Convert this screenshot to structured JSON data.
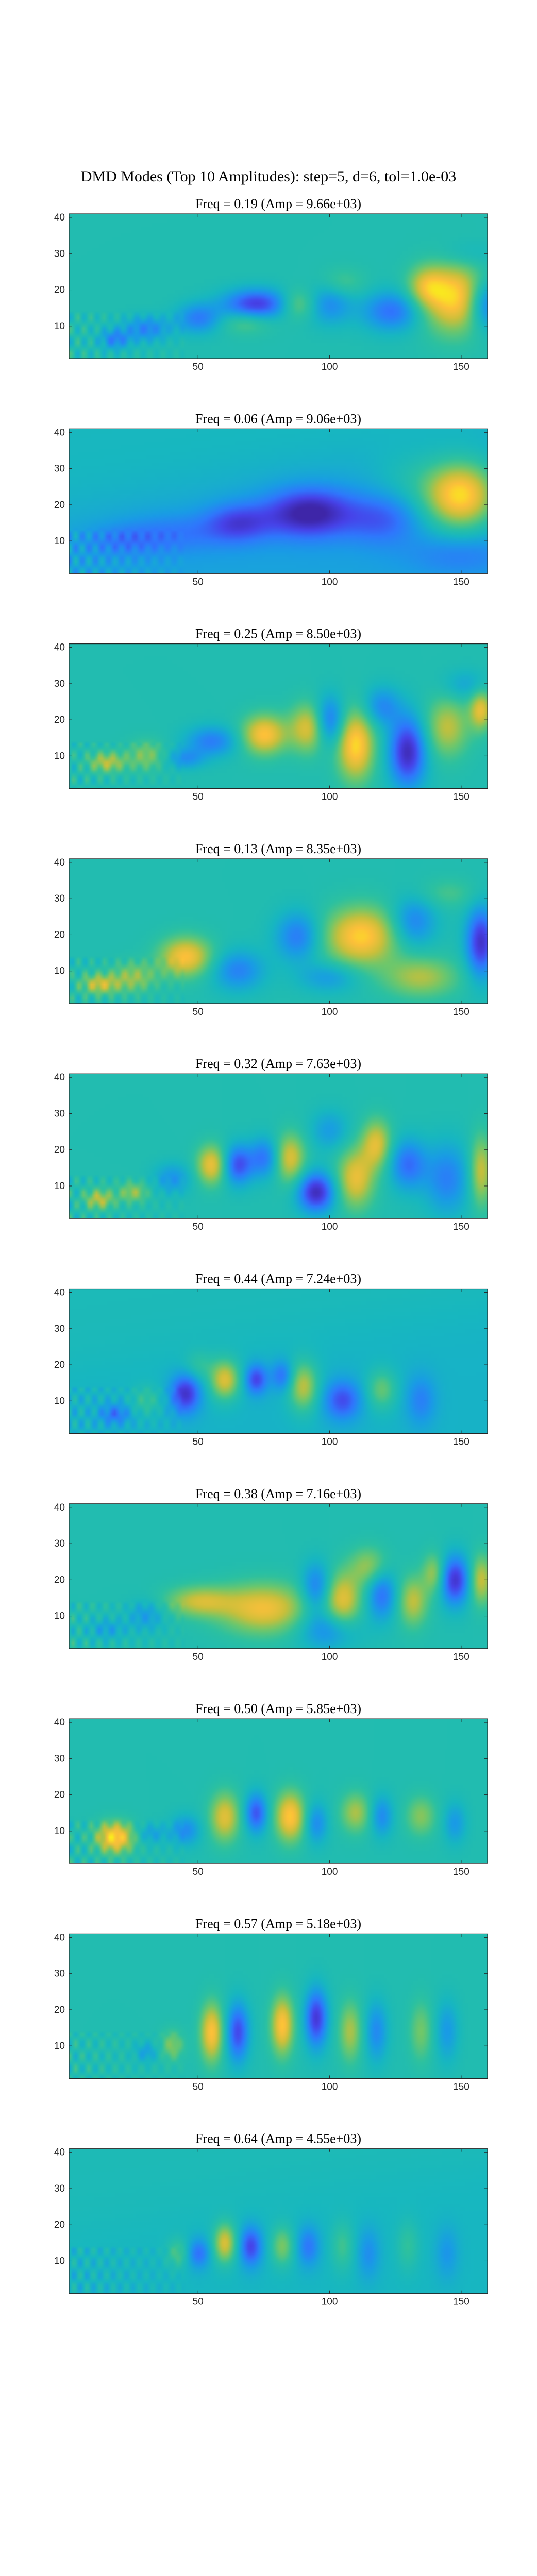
{
  "figure": {
    "suptitle": "DMD Modes (Top 10 Amplitudes): step=5, d=6, tol=1.0e-03"
  },
  "colormap": [
    "#3e26a8",
    "#4742e9",
    "#2f77fd",
    "#199ce5",
    "#17b7c0",
    "#2cc1a0",
    "#6ec76b",
    "#c9bf3a",
    "#fdbf3a",
    "#f8f815"
  ],
  "chart_data": [
    {
      "type": "heatmap",
      "title": "Freq = 0.19 (Amp = 9.66e+03)",
      "freq": 0.19,
      "amp": 9660,
      "xlim": [
        1,
        160
      ],
      "ylim": [
        1,
        41
      ],
      "xticks": [
        50,
        100,
        150
      ],
      "yticks": [
        10,
        20,
        30,
        40
      ],
      "grid": false,
      "blobs": [
        [
          148,
          18,
          9,
          7,
          0.9
        ],
        [
          137,
          21,
          5,
          4,
          0.5
        ],
        [
          72,
          16,
          9,
          3,
          -0.9
        ],
        [
          50,
          12,
          6,
          3,
          -0.55
        ],
        [
          100,
          16,
          6,
          4,
          -0.45
        ],
        [
          124,
          14,
          8,
          4,
          -0.6
        ],
        [
          160,
          16,
          5,
          5,
          -0.7
        ],
        [
          88,
          16,
          5,
          3,
          0.45
        ],
        [
          68,
          11,
          7,
          2.5,
          0.3
        ],
        [
          30,
          9,
          6,
          2.5,
          -0.5
        ],
        [
          18,
          6,
          4,
          2,
          -0.5
        ],
        [
          105,
          22,
          6,
          3,
          0.25
        ],
        [
          152,
          30,
          8,
          3,
          -0.2
        ]
      ]
    },
    {
      "type": "heatmap",
      "title": "Freq = 0.06 (Amp = 9.06e+03)",
      "freq": 0.06,
      "amp": 9060,
      "xlim": [
        1,
        160
      ],
      "ylim": [
        1,
        41
      ],
      "xticks": [
        50,
        100,
        150
      ],
      "yticks": [
        10,
        20,
        30,
        40
      ],
      "grid": false,
      "base": -0.28,
      "blobs": [
        [
          150,
          23,
          10,
          7,
          1.2
        ],
        [
          92,
          18,
          12,
          5,
          -0.85
        ],
        [
          65,
          15,
          9,
          4,
          -0.55
        ],
        [
          120,
          16,
          10,
          5,
          -0.4
        ],
        [
          40,
          12,
          14,
          4,
          -0.3
        ],
        [
          20,
          10,
          10,
          3,
          -0.25
        ],
        [
          130,
          28,
          10,
          6,
          0.2
        ],
        [
          150,
          6,
          14,
          4,
          -0.25
        ]
      ]
    },
    {
      "type": "heatmap",
      "title": "Freq = 0.25 (Amp = 8.50e+03)",
      "freq": 0.25,
      "amp": 8500,
      "xlim": [
        1,
        160
      ],
      "ylim": [
        1,
        41
      ],
      "xticks": [
        50,
        100,
        150
      ],
      "yticks": [
        10,
        20,
        30,
        40
      ],
      "grid": false,
      "blobs": [
        [
          110,
          13,
          5,
          7,
          0.9
        ],
        [
          130,
          11,
          5,
          7,
          -0.95
        ],
        [
          75,
          16,
          6,
          4,
          0.85
        ],
        [
          92,
          18,
          5,
          5,
          0.7
        ],
        [
          100,
          20,
          4,
          5,
          -0.7
        ],
        [
          145,
          18,
          6,
          6,
          0.55
        ],
        [
          158,
          23,
          3,
          4,
          0.7
        ],
        [
          120,
          24,
          5,
          4,
          -0.5
        ],
        [
          55,
          14,
          7,
          3,
          -0.55
        ],
        [
          30,
          10,
          5,
          3,
          0.4
        ],
        [
          15,
          8,
          5,
          2,
          0.55
        ],
        [
          45,
          9,
          5,
          2,
          -0.4
        ],
        [
          152,
          30,
          6,
          3,
          -0.3
        ]
      ]
    },
    {
      "type": "heatmap",
      "title": "Freq = 0.13 (Amp = 8.35e+03)",
      "freq": 0.13,
      "amp": 8350,
      "xlim": [
        1,
        160
      ],
      "ylim": [
        1,
        41
      ],
      "xticks": [
        50,
        100,
        150
      ],
      "yticks": [
        10,
        20,
        30,
        40
      ],
      "grid": false,
      "blobs": [
        [
          112,
          20,
          10,
          6,
          0.9
        ],
        [
          45,
          14,
          7,
          4,
          0.85
        ],
        [
          158,
          18,
          4,
          7,
          -0.9
        ],
        [
          88,
          20,
          6,
          5,
          -0.6
        ],
        [
          132,
          24,
          6,
          5,
          -0.55
        ],
        [
          65,
          10,
          7,
          4,
          -0.5
        ],
        [
          135,
          8,
          10,
          4,
          0.5
        ],
        [
          100,
          8,
          8,
          3,
          -0.35
        ],
        [
          25,
          8,
          6,
          3,
          0.45
        ],
        [
          12,
          6,
          5,
          2,
          0.6
        ],
        [
          145,
          32,
          8,
          3,
          0.25
        ]
      ]
    },
    {
      "type": "heatmap",
      "title": "Freq = 0.32 (Amp = 7.63e+03)",
      "freq": 0.32,
      "amp": 7630,
      "xlim": [
        1,
        160
      ],
      "ylim": [
        1,
        41
      ],
      "xticks": [
        50,
        100,
        150
      ],
      "yticks": [
        10,
        20,
        30,
        40
      ],
      "grid": false,
      "blobs": [
        [
          55,
          16,
          4,
          4,
          0.8
        ],
        [
          65,
          16,
          4,
          4,
          -0.8
        ],
        [
          85,
          18,
          4,
          5,
          0.7
        ],
        [
          75,
          18,
          4,
          4,
          -0.6
        ],
        [
          95,
          8,
          5,
          4,
          -0.95
        ],
        [
          110,
          12,
          5,
          6,
          0.7
        ],
        [
          118,
          22,
          4,
          5,
          0.7
        ],
        [
          130,
          16,
          5,
          5,
          -0.6
        ],
        [
          145,
          12,
          6,
          7,
          -0.5
        ],
        [
          158,
          14,
          3,
          7,
          0.6
        ],
        [
          40,
          12,
          5,
          3,
          -0.4
        ],
        [
          25,
          8,
          4,
          2,
          0.45
        ],
        [
          12,
          6,
          4,
          2,
          0.55
        ],
        [
          100,
          26,
          5,
          4,
          -0.4
        ]
      ]
    },
    {
      "type": "heatmap",
      "title": "Freq = 0.44 (Amp = 7.24e+03)",
      "freq": 0.44,
      "amp": 7240,
      "xlim": [
        1,
        160
      ],
      "ylim": [
        1,
        41
      ],
      "xticks": [
        50,
        100,
        150
      ],
      "yticks": [
        10,
        20,
        30,
        40
      ],
      "grid": false,
      "base": -0.15,
      "blobs": [
        [
          60,
          16,
          4,
          4,
          0.85
        ],
        [
          72,
          16,
          3,
          3,
          -0.7
        ],
        [
          45,
          12,
          4,
          4,
          -0.8
        ],
        [
          90,
          14,
          4,
          5,
          0.7
        ],
        [
          105,
          10,
          5,
          4,
          -0.6
        ],
        [
          82,
          17,
          3,
          3,
          -0.5
        ],
        [
          120,
          13,
          4,
          4,
          0.45
        ],
        [
          135,
          10,
          4,
          5,
          -0.35
        ],
        [
          30,
          10,
          4,
          3,
          0.3
        ],
        [
          18,
          6,
          4,
          2,
          -0.45
        ],
        [
          50,
          20,
          4,
          3,
          0.3
        ]
      ]
    },
    {
      "type": "heatmap",
      "title": "Freq = 0.38 (Amp = 7.16e+03)",
      "freq": 0.38,
      "amp": 7160,
      "xlim": [
        1,
        160
      ],
      "ylim": [
        1,
        41
      ],
      "xticks": [
        50,
        100,
        150
      ],
      "yticks": [
        10,
        20,
        30,
        40
      ],
      "grid": false,
      "blobs": [
        [
          75,
          12,
          12,
          5,
          0.75
        ],
        [
          50,
          14,
          9,
          3,
          0.6
        ],
        [
          105,
          14,
          5,
          6,
          0.7
        ],
        [
          95,
          18,
          4,
          5,
          -0.6
        ],
        [
          120,
          16,
          4,
          5,
          -0.6
        ],
        [
          132,
          14,
          4,
          5,
          0.55
        ],
        [
          148,
          20,
          4,
          5,
          -0.9
        ],
        [
          140,
          22,
          3,
          4,
          0.5
        ],
        [
          158,
          20,
          3,
          5,
          0.6
        ],
        [
          100,
          6,
          8,
          4,
          -0.5
        ],
        [
          115,
          24,
          5,
          4,
          0.5
        ],
        [
          30,
          10,
          5,
          3,
          -0.35
        ],
        [
          15,
          6,
          5,
          2,
          -0.3
        ]
      ]
    },
    {
      "type": "heatmap",
      "title": "Freq = 0.50 (Amp = 5.85e+03)",
      "freq": 0.5,
      "amp": 5850,
      "xlim": [
        1,
        160
      ],
      "ylim": [
        1,
        41
      ],
      "xticks": [
        50,
        100,
        150
      ],
      "yticks": [
        10,
        20,
        30,
        40
      ],
      "grid": false,
      "blobs": [
        [
          18,
          8,
          5,
          3,
          0.95
        ],
        [
          60,
          14,
          4,
          5,
          0.7
        ],
        [
          72,
          15,
          3,
          4,
          -0.75
        ],
        [
          85,
          14,
          4,
          5,
          0.85
        ],
        [
          95,
          12,
          3,
          4,
          -0.45
        ],
        [
          110,
          15,
          4,
          4,
          0.5
        ],
        [
          120,
          14,
          3,
          4,
          -0.45
        ],
        [
          135,
          14,
          4,
          4,
          0.4
        ],
        [
          148,
          12,
          3,
          4,
          -0.35
        ],
        [
          45,
          10,
          4,
          3,
          -0.45
        ],
        [
          32,
          9,
          4,
          2,
          -0.3
        ]
      ]
    },
    {
      "type": "heatmap",
      "title": "Freq = 0.57 (Amp = 5.18e+03)",
      "freq": 0.57,
      "amp": 5180,
      "xlim": [
        1,
        160
      ],
      "ylim": [
        1,
        41
      ],
      "xticks": [
        50,
        100,
        150
      ],
      "yticks": [
        10,
        20,
        30,
        40
      ],
      "grid": false,
      "blobs": [
        [
          55,
          14,
          3,
          6,
          0.85
        ],
        [
          65,
          14,
          3,
          6,
          -0.8
        ],
        [
          82,
          16,
          3,
          6,
          0.85
        ],
        [
          95,
          18,
          3,
          6,
          -0.9
        ],
        [
          108,
          14,
          3,
          6,
          0.5
        ],
        [
          118,
          14,
          3,
          6,
          -0.45
        ],
        [
          135,
          14,
          3,
          6,
          0.35
        ],
        [
          145,
          14,
          3,
          6,
          -0.35
        ],
        [
          40,
          10,
          3,
          3,
          0.4
        ],
        [
          30,
          8,
          3,
          2,
          -0.3
        ]
      ]
    },
    {
      "type": "heatmap",
      "title": "Freq = 0.64 (Amp = 4.55e+03)",
      "freq": 0.64,
      "amp": 4550,
      "xlim": [
        1,
        160
      ],
      "ylim": [
        1,
        41
      ],
      "xticks": [
        50,
        100,
        150
      ],
      "yticks": [
        10,
        20,
        30,
        40
      ],
      "grid": false,
      "base": -0.12,
      "blobs": [
        [
          60,
          15,
          3,
          4,
          0.8
        ],
        [
          70,
          14,
          3,
          4,
          -0.7
        ],
        [
          50,
          12,
          3,
          3,
          -0.5
        ],
        [
          42,
          12,
          3,
          3,
          0.35
        ],
        [
          82,
          14,
          3,
          4,
          0.5
        ],
        [
          92,
          14,
          3,
          4,
          -0.45
        ],
        [
          105,
          14,
          3,
          5,
          0.3
        ],
        [
          115,
          12,
          3,
          5,
          -0.3
        ],
        [
          130,
          14,
          3,
          5,
          0.25
        ],
        [
          145,
          12,
          3,
          5,
          -0.25
        ]
      ]
    }
  ]
}
